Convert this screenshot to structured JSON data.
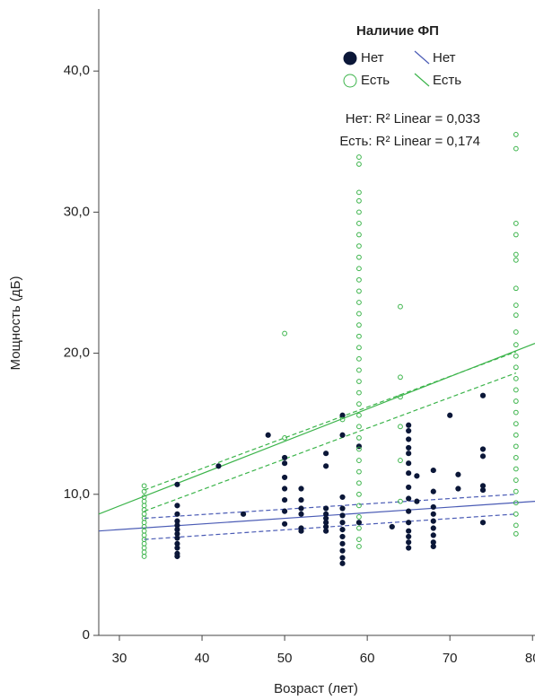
{
  "chart_data": {
    "type": "scatter",
    "xlabel": "Возраст (лет)",
    "ylabel": "Мощность (дБ)",
    "xlim": [
      27.5,
      80.3
    ],
    "ylim": [
      0,
      44.4
    ],
    "xticks": [
      30,
      40,
      50,
      60,
      70,
      80
    ],
    "yticks": [
      {
        "value": 0,
        "label": "0"
      },
      {
        "value": 10,
        "label": "10,0"
      },
      {
        "value": 20,
        "label": "20,0"
      },
      {
        "value": 30,
        "label": "30,0"
      },
      {
        "value": 40,
        "label": "40,0"
      }
    ],
    "legend_title": "Наличие ФП",
    "legend": "top-right",
    "series": [
      {
        "name": "Нет",
        "color": "#0b1738",
        "filled": true,
        "x": [
          37,
          37,
          37,
          37,
          37,
          37,
          37,
          37,
          37,
          37,
          37,
          37,
          42,
          45,
          48,
          50,
          50,
          50,
          50,
          50,
          50,
          50,
          52,
          52,
          52,
          52,
          52,
          52,
          55,
          55,
          55,
          55,
          55,
          55,
          55,
          55,
          57,
          57,
          57,
          57,
          57,
          57,
          57,
          57,
          57,
          57,
          57,
          57,
          59,
          59,
          63,
          65,
          65,
          65,
          65,
          65,
          65,
          65,
          65,
          65,
          65,
          65,
          65,
          65,
          65,
          65,
          66,
          66,
          68,
          68,
          68,
          68,
          68,
          68,
          68,
          68,
          68,
          70,
          71,
          71,
          74,
          74,
          74,
          74,
          74,
          74
        ],
        "values": [
          10.7,
          9.2,
          8.6,
          8.1,
          7.8,
          7.5,
          7.2,
          6.9,
          6.5,
          6.2,
          5.8,
          5.6,
          12.0,
          8.6,
          14.2,
          12.6,
          12.2,
          11.2,
          10.4,
          9.6,
          8.8,
          7.9,
          10.4,
          9.6,
          9.0,
          8.6,
          7.6,
          7.4,
          12.9,
          12.0,
          9.0,
          8.6,
          8.3,
          8.0,
          7.7,
          7.4,
          15.6,
          14.2,
          9.8,
          9.0,
          8.5,
          8.0,
          7.5,
          7.0,
          6.5,
          6.0,
          5.5,
          5.1,
          13.4,
          8.0,
          7.7,
          14.9,
          14.5,
          13.9,
          13.3,
          12.9,
          12.2,
          11.5,
          10.5,
          9.7,
          8.8,
          8.0,
          7.4,
          7.0,
          6.6,
          6.2,
          11.3,
          9.5,
          11.7,
          10.2,
          9.1,
          8.6,
          8.1,
          7.6,
          7.1,
          6.6,
          6.3,
          15.6,
          11.4,
          10.4,
          17.0,
          13.2,
          12.7,
          10.6,
          10.3,
          8.0
        ]
      },
      {
        "name": "Есть",
        "color": "#3cb44b",
        "filled": false,
        "x": [
          33,
          33,
          33,
          33,
          33,
          33,
          33,
          33,
          33,
          33,
          33,
          33,
          33,
          33,
          33,
          33,
          33,
          50,
          50,
          57,
          59,
          59,
          59,
          59,
          59,
          59,
          59,
          59,
          59,
          59,
          59,
          59,
          59,
          59,
          59,
          59,
          59,
          59,
          59,
          59,
          59,
          59,
          59,
          59,
          59,
          59,
          59,
          59,
          59,
          59,
          59,
          59,
          59,
          59,
          59,
          64,
          64,
          64,
          64,
          64,
          64,
          78,
          78,
          78,
          78,
          78,
          78,
          78,
          78,
          78,
          78,
          78,
          78,
          78,
          78,
          78,
          78,
          78,
          78,
          78,
          78,
          78,
          78,
          78,
          78,
          78,
          78,
          78,
          78
        ],
        "values": [
          10.6,
          10.2,
          9.8,
          9.5,
          9.2,
          8.9,
          8.6,
          8.3,
          8.0,
          7.7,
          7.4,
          7.1,
          6.8,
          6.5,
          6.2,
          5.9,
          5.6,
          21.4,
          14.0,
          15.3,
          33.9,
          33.4,
          31.4,
          30.8,
          30.0,
          29.2,
          28.4,
          27.6,
          26.8,
          26.0,
          25.2,
          24.4,
          23.6,
          22.8,
          22.0,
          21.2,
          20.4,
          19.6,
          18.8,
          18.0,
          17.2,
          16.4,
          15.6,
          14.8,
          14.0,
          13.2,
          12.4,
          11.6,
          10.8,
          10.0,
          9.2,
          8.4,
          7.6,
          6.8,
          6.3,
          23.3,
          18.3,
          16.9,
          14.8,
          12.4,
          9.5,
          35.5,
          34.5,
          29.2,
          28.4,
          27.0,
          26.6,
          24.6,
          23.4,
          22.7,
          21.5,
          20.6,
          19.8,
          19.0,
          18.2,
          17.4,
          16.6,
          15.8,
          15.0,
          14.2,
          13.4,
          12.6,
          11.8,
          11.0,
          10.2,
          9.4,
          8.6,
          7.8,
          7.2
        ]
      }
    ],
    "fit_lines": [
      {
        "name": "Нет",
        "color": "#4a5bb5",
        "x": [
          27.5,
          80.3
        ],
        "values": [
          7.4,
          9.5
        ],
        "ci_x": [
          33,
          78
        ],
        "ci_upper": [
          8.3,
          10.0
        ],
        "ci_lower": [
          6.8,
          8.6
        ]
      },
      {
        "name": "Есть",
        "color": "#3cb44b",
        "x": [
          27.5,
          80.3
        ],
        "values": [
          8.6,
          20.7
        ],
        "ci_x": [
          33,
          78
        ],
        "ci_upper": [
          10.3,
          20.1
        ],
        "ci_lower": [
          8.8,
          18.6
        ]
      }
    ],
    "annotations": [
      "Нет: R² Linear = 0,033",
      "Есть: R² Linear = 0,174"
    ]
  }
}
